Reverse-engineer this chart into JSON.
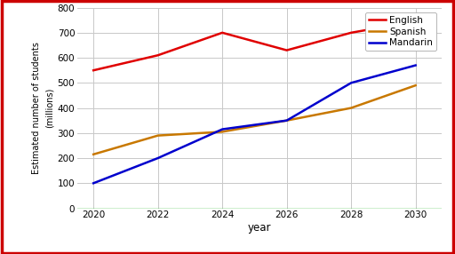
{
  "years": [
    2020,
    2022,
    2024,
    2026,
    2028,
    2030
  ],
  "english": [
    550,
    610,
    700,
    630,
    700,
    745
  ],
  "spanish": [
    215,
    290,
    305,
    350,
    400,
    490
  ],
  "mandarin": [
    100,
    200,
    315,
    350,
    500,
    570
  ],
  "english_color": "#e00000",
  "spanish_color": "#c87800",
  "mandarin_color": "#0000cd",
  "ylabel_line1": "Estimated number of students",
  "ylabel_line2": "(millions)",
  "xlabel": "year",
  "legend_labels": [
    "English",
    "Spanish",
    "Mandarin"
  ],
  "ylim": [
    0,
    800
  ],
  "yticks": [
    0,
    100,
    200,
    300,
    400,
    500,
    600,
    700,
    800
  ],
  "xlim": [
    2019.5,
    2030.8
  ],
  "xticks": [
    2020,
    2022,
    2024,
    2026,
    2028,
    2030
  ],
  "background_color": "#ffffff",
  "border_color": "#cc0000",
  "grid_color": "#c8c8c8",
  "zero_line_color": "#00aa00",
  "linewidth": 1.8
}
